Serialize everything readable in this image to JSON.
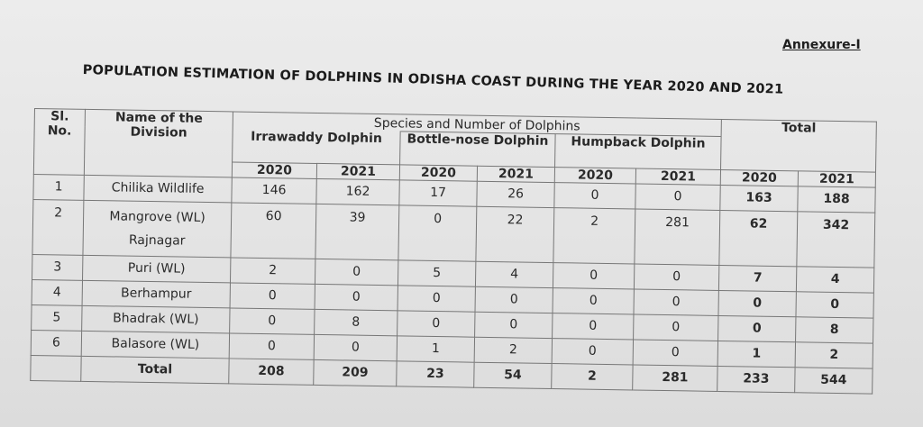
{
  "annexure": "Annexure-I",
  "title": "POPULATION ESTIMATION OF DOLPHINS IN ODISHA COAST DURING THE YEAR 2020 AND 2021",
  "table": {
    "col_slno": "Sl. No.",
    "col_division": "Name of the Division",
    "col_species_group": "Species and Number of Dolphins",
    "col_total": "Total",
    "species": [
      "Irrawaddy Dolphin",
      "Bottle-nose Dolphin",
      "Humpback Dolphin"
    ],
    "years": [
      "2020",
      "2021",
      "2020",
      "2021",
      "2020",
      "2021",
      "2020",
      "2021"
    ],
    "rows": [
      {
        "sl": "1",
        "division": "Chilika Wildlife",
        "values": [
          "146",
          "162",
          "17",
          "26",
          "0",
          "0",
          "163",
          "188"
        ]
      },
      {
        "sl": "2",
        "division": "Mangrove (WL) Rajnagar",
        "values": [
          "60",
          "39",
          "0",
          "22",
          "2",
          "281",
          "62",
          "342"
        ]
      },
      {
        "sl": "3",
        "division": "Puri (WL)",
        "values": [
          "2",
          "0",
          "5",
          "4",
          "0",
          "0",
          "7",
          "4"
        ]
      },
      {
        "sl": "4",
        "division": "Berhampur",
        "values": [
          "0",
          "0",
          "0",
          "0",
          "0",
          "0",
          "0",
          "0"
        ]
      },
      {
        "sl": "5",
        "division": "Bhadrak (WL)",
        "values": [
          "0",
          "8",
          "0",
          "0",
          "0",
          "0",
          "0",
          "8"
        ]
      },
      {
        "sl": "6",
        "division": "Balasore (WL)",
        "values": [
          "0",
          "0",
          "1",
          "2",
          "0",
          "0",
          "1",
          "2"
        ]
      }
    ],
    "total_row": {
      "label": "Total",
      "values": [
        "208",
        "209",
        "23",
        "54",
        "2",
        "281",
        "233",
        "544"
      ]
    }
  }
}
